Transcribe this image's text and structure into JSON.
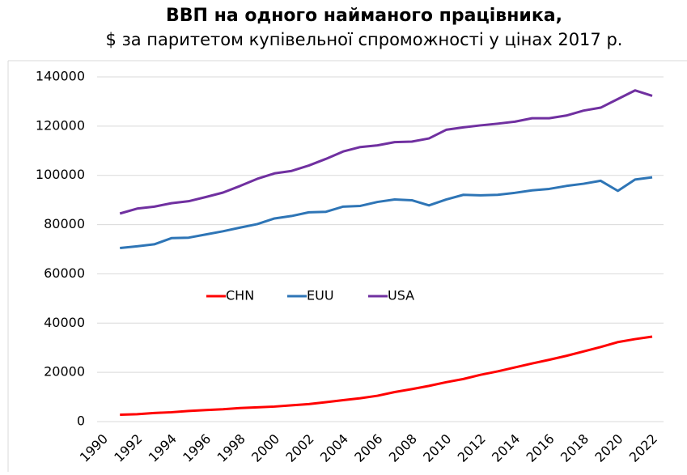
{
  "chart_data": {
    "type": "line",
    "title": "ВВП на одного найманого працівника,",
    "subtitle": "$ за паритетом купівельної спроможності у цінах 2017 р.",
    "x": [
      1991,
      1992,
      1993,
      1994,
      1995,
      1996,
      1997,
      1998,
      1999,
      2000,
      2001,
      2002,
      2003,
      2004,
      2005,
      2006,
      2007,
      2008,
      2009,
      2010,
      2011,
      2012,
      2013,
      2014,
      2015,
      2016,
      2017,
      2018,
      2019,
      2020,
      2021,
      2022
    ],
    "series": [
      {
        "name": "CHN",
        "color": "#ff0000",
        "values": [
          2800,
          3000,
          3500,
          3800,
          4300,
          4700,
          5000,
          5500,
          5800,
          6100,
          6600,
          7100,
          7900,
          8700,
          9500,
          10500,
          12000,
          13200,
          14500,
          16000,
          17300,
          19000,
          20400,
          22000,
          23600,
          25100,
          26700,
          28500,
          30300,
          32300,
          33500,
          34500
        ]
      },
      {
        "name": "EUU",
        "color": "#2e75b6",
        "values": [
          70500,
          71200,
          72000,
          74500,
          74700,
          76000,
          77300,
          78800,
          80200,
          82500,
          83500,
          85000,
          85200,
          87300,
          87600,
          89200,
          90200,
          89900,
          87800,
          90200,
          92100,
          91900,
          92100,
          92900,
          93900,
          94500,
          95700,
          96600,
          97800,
          93700,
          98300,
          99200
        ]
      },
      {
        "name": "USA",
        "color": "#7030a0",
        "values": [
          84500,
          86500,
          87300,
          88700,
          89500,
          91200,
          93000,
          95700,
          98600,
          100800,
          101800,
          104000,
          106700,
          109700,
          111500,
          112200,
          113500,
          113700,
          115000,
          118500,
          119500,
          120300,
          121000,
          121800,
          123200,
          123200,
          124300,
          126300,
          127500,
          131000,
          134500,
          132300
        ]
      }
    ],
    "xlim": [
      1990,
      2022
    ],
    "xticks": [
      1990,
      1992,
      1994,
      1996,
      1998,
      2000,
      2002,
      2004,
      2006,
      2008,
      2010,
      2012,
      2014,
      2016,
      2018,
      2020,
      2022
    ],
    "ylim": [
      0,
      140000
    ],
    "yticks": [
      0,
      20000,
      40000,
      60000,
      80000,
      100000,
      120000,
      140000
    ],
    "grid": true,
    "legend": "center"
  }
}
